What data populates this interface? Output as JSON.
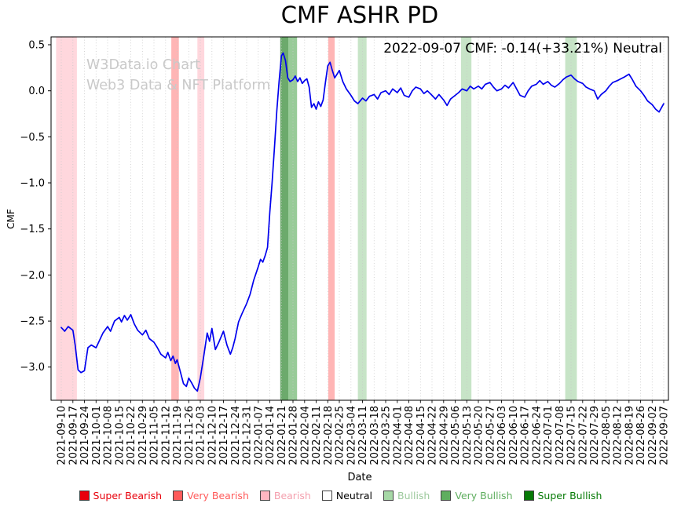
{
  "title": "CMF ASHR PD",
  "annotation": "2022-09-07 CMF: -0.14(+33.21%) Neutral",
  "watermark": {
    "line1": "W3Data.io Chart",
    "line2": "Web3 Data & NFT Platform"
  },
  "chart_data": {
    "type": "line",
    "title": "CMF ASHR PD",
    "xlabel": "Date",
    "ylabel": "CMF",
    "line_color": "#0000ee",
    "grid": "vertical-dotted",
    "legend_position": "bottom",
    "ylim": [
      -3.36,
      0.59
    ],
    "yticks": [
      {
        "value": 0.5,
        "label": "0.5"
      },
      {
        "value": 0.0,
        "label": "0.0"
      },
      {
        "value": -0.5,
        "label": "−0.5"
      },
      {
        "value": -1.0,
        "label": "−1.0"
      },
      {
        "value": -1.5,
        "label": "−1.5"
      },
      {
        "value": -2.0,
        "label": "−2.0"
      },
      {
        "value": -2.5,
        "label": "−2.5"
      },
      {
        "value": -3.0,
        "label": "−3.0"
      }
    ],
    "x_tick_labels": [
      "2021-09-10",
      "2021-09-17",
      "2021-09-24",
      "2021-10-01",
      "2021-10-08",
      "2021-10-15",
      "2021-10-22",
      "2021-10-29",
      "2021-11-05",
      "2021-11-12",
      "2021-11-19",
      "2021-11-26",
      "2021-12-03",
      "2021-12-10",
      "2021-12-17",
      "2021-12-24",
      "2021-12-31",
      "2022-01-07",
      "2022-01-14",
      "2022-01-21",
      "2022-01-28",
      "2022-02-04",
      "2022-02-11",
      "2022-02-18",
      "2022-02-25",
      "2022-03-04",
      "2022-03-11",
      "2022-03-18",
      "2022-03-25",
      "2022-04-01",
      "2022-04-08",
      "2022-04-15",
      "2022-04-22",
      "2022-04-29",
      "2022-05-06",
      "2022-05-13",
      "2022-05-20",
      "2022-05-27",
      "2022-06-03",
      "2022-06-10",
      "2022-06-17",
      "2022-06-24",
      "2022-07-01",
      "2022-07-08",
      "2022-07-15",
      "2022-07-22",
      "2022-07-29",
      "2022-08-05",
      "2022-08-12",
      "2022-08-19",
      "2022-08-26",
      "2022-09-02",
      "2022-09-07"
    ],
    "series": [
      {
        "name": "CMF",
        "points": [
          [
            0,
            -2.57
          ],
          [
            0.3,
            -2.61
          ],
          [
            0.6,
            -2.56
          ],
          [
            1,
            -2.6
          ],
          [
            1.2,
            -2.76
          ],
          [
            1.45,
            -3.03
          ],
          [
            1.7,
            -3.06
          ],
          [
            2,
            -3.04
          ],
          [
            2.3,
            -2.79
          ],
          [
            2.6,
            -2.76
          ],
          [
            3,
            -2.79
          ],
          [
            3.3,
            -2.71
          ],
          [
            3.6,
            -2.63
          ],
          [
            4,
            -2.56
          ],
          [
            4.25,
            -2.61
          ],
          [
            4.6,
            -2.5
          ],
          [
            5,
            -2.46
          ],
          [
            5.2,
            -2.51
          ],
          [
            5.45,
            -2.44
          ],
          [
            5.7,
            -2.49
          ],
          [
            6,
            -2.43
          ],
          [
            6.3,
            -2.53
          ],
          [
            6.6,
            -2.6
          ],
          [
            7,
            -2.65
          ],
          [
            7.3,
            -2.6
          ],
          [
            7.6,
            -2.69
          ],
          [
            8,
            -2.73
          ],
          [
            8.3,
            -2.79
          ],
          [
            8.6,
            -2.86
          ],
          [
            9,
            -2.9
          ],
          [
            9.2,
            -2.84
          ],
          [
            9.45,
            -2.93
          ],
          [
            9.65,
            -2.88
          ],
          [
            9.85,
            -2.96
          ],
          [
            10,
            -2.92
          ],
          [
            10.3,
            -3.06
          ],
          [
            10.55,
            -3.18
          ],
          [
            10.8,
            -3.21
          ],
          [
            11,
            -3.12
          ],
          [
            11.25,
            -3.17
          ],
          [
            11.5,
            -3.23
          ],
          [
            11.75,
            -3.26
          ],
          [
            12,
            -3.12
          ],
          [
            12.3,
            -2.88
          ],
          [
            12.6,
            -2.63
          ],
          [
            12.8,
            -2.72
          ],
          [
            13,
            -2.58
          ],
          [
            13.3,
            -2.81
          ],
          [
            13.6,
            -2.73
          ],
          [
            14,
            -2.61
          ],
          [
            14.3,
            -2.76
          ],
          [
            14.6,
            -2.86
          ],
          [
            14.8,
            -2.79
          ],
          [
            15,
            -2.69
          ],
          [
            15.3,
            -2.51
          ],
          [
            15.6,
            -2.42
          ],
          [
            16,
            -2.31
          ],
          [
            16.3,
            -2.21
          ],
          [
            16.6,
            -2.06
          ],
          [
            17,
            -1.91
          ],
          [
            17.2,
            -1.83
          ],
          [
            17.4,
            -1.86
          ],
          [
            17.6,
            -1.79
          ],
          [
            17.8,
            -1.7
          ],
          [
            18,
            -1.32
          ],
          [
            18.2,
            -1.0
          ],
          [
            18.4,
            -0.62
          ],
          [
            18.6,
            -0.22
          ],
          [
            18.8,
            0.1
          ],
          [
            19,
            0.38
          ],
          [
            19.15,
            0.41
          ],
          [
            19.35,
            0.33
          ],
          [
            19.55,
            0.14
          ],
          [
            19.75,
            0.1
          ],
          [
            20,
            0.12
          ],
          [
            20.2,
            0.16
          ],
          [
            20.4,
            0.1
          ],
          [
            20.6,
            0.14
          ],
          [
            20.8,
            0.08
          ],
          [
            21,
            0.11
          ],
          [
            21.2,
            0.13
          ],
          [
            21.4,
            0.04
          ],
          [
            21.6,
            -0.18
          ],
          [
            21.8,
            -0.14
          ],
          [
            22,
            -0.2
          ],
          [
            22.2,
            -0.12
          ],
          [
            22.4,
            -0.17
          ],
          [
            22.6,
            -0.1
          ],
          [
            22.8,
            0.09
          ],
          [
            23,
            0.27
          ],
          [
            23.2,
            0.31
          ],
          [
            23.4,
            0.22
          ],
          [
            23.6,
            0.14
          ],
          [
            23.8,
            0.18
          ],
          [
            24,
            0.22
          ],
          [
            24.3,
            0.1
          ],
          [
            24.6,
            0.02
          ],
          [
            25,
            -0.05
          ],
          [
            25.3,
            -0.11
          ],
          [
            25.6,
            -0.14
          ],
          [
            26,
            -0.08
          ],
          [
            26.3,
            -0.11
          ],
          [
            26.6,
            -0.06
          ],
          [
            27,
            -0.04
          ],
          [
            27.3,
            -0.09
          ],
          [
            27.6,
            -0.02
          ],
          [
            28,
            0.0
          ],
          [
            28.3,
            -0.04
          ],
          [
            28.6,
            0.02
          ],
          [
            29,
            -0.02
          ],
          [
            29.3,
            0.03
          ],
          [
            29.6,
            -0.05
          ],
          [
            30,
            -0.07
          ],
          [
            30.3,
            0.0
          ],
          [
            30.6,
            0.04
          ],
          [
            31,
            0.02
          ],
          [
            31.3,
            -0.03
          ],
          [
            31.6,
            0.0
          ],
          [
            32,
            -0.05
          ],
          [
            32.3,
            -0.09
          ],
          [
            32.6,
            -0.04
          ],
          [
            33,
            -0.1
          ],
          [
            33.3,
            -0.16
          ],
          [
            33.6,
            -0.09
          ],
          [
            34,
            -0.05
          ],
          [
            34.3,
            -0.02
          ],
          [
            34.6,
            0.02
          ],
          [
            35,
            0.0
          ],
          [
            35.3,
            0.05
          ],
          [
            35.6,
            0.02
          ],
          [
            36,
            0.05
          ],
          [
            36.3,
            0.02
          ],
          [
            36.6,
            0.07
          ],
          [
            37,
            0.09
          ],
          [
            37.3,
            0.04
          ],
          [
            37.6,
            0.0
          ],
          [
            38,
            0.02
          ],
          [
            38.3,
            0.06
          ],
          [
            38.6,
            0.03
          ],
          [
            39,
            0.09
          ],
          [
            39.3,
            0.02
          ],
          [
            39.6,
            -0.05
          ],
          [
            40,
            -0.07
          ],
          [
            40.3,
            0.0
          ],
          [
            40.6,
            0.05
          ],
          [
            41,
            0.07
          ],
          [
            41.3,
            0.11
          ],
          [
            41.6,
            0.07
          ],
          [
            42,
            0.1
          ],
          [
            42.3,
            0.06
          ],
          [
            42.6,
            0.04
          ],
          [
            43,
            0.08
          ],
          [
            43.3,
            0.12
          ],
          [
            43.6,
            0.15
          ],
          [
            44,
            0.17
          ],
          [
            44.3,
            0.13
          ],
          [
            44.6,
            0.1
          ],
          [
            45,
            0.08
          ],
          [
            45.3,
            0.04
          ],
          [
            45.6,
            0.02
          ],
          [
            46,
            0.0
          ],
          [
            46.3,
            -0.09
          ],
          [
            46.6,
            -0.04
          ],
          [
            47,
            0.0
          ],
          [
            47.3,
            0.05
          ],
          [
            47.6,
            0.09
          ],
          [
            48,
            0.11
          ],
          [
            48.3,
            0.13
          ],
          [
            48.6,
            0.15
          ],
          [
            49,
            0.18
          ],
          [
            49.3,
            0.12
          ],
          [
            49.6,
            0.05
          ],
          [
            50,
            0.0
          ],
          [
            50.3,
            -0.05
          ],
          [
            50.6,
            -0.11
          ],
          [
            51,
            -0.15
          ],
          [
            51.3,
            -0.2
          ],
          [
            51.6,
            -0.23
          ],
          [
            52,
            -0.14
          ]
        ]
      }
    ],
    "band_colors": {
      "bearish": {
        "fill": "#ffb6c1",
        "opacity": 0.55
      },
      "very_bearish": {
        "fill": "#ff5a5a",
        "opacity": 0.45
      },
      "bullish": {
        "fill": "#8fc98f",
        "opacity": 0.5
      },
      "bullish_strong": {
        "fill": "#44a044",
        "opacity": 0.55
      },
      "very_bullish": {
        "fill": "#1d7c1d",
        "opacity": 0.65
      }
    },
    "bands": [
      {
        "from": -0.45,
        "to": 1.35,
        "level": "bearish"
      },
      {
        "from": 9.5,
        "to": 10.15,
        "level": "very_bearish"
      },
      {
        "from": 11.75,
        "to": 12.35,
        "level": "bearish"
      },
      {
        "from": 18.9,
        "to": 19.6,
        "level": "very_bullish"
      },
      {
        "from": 19.6,
        "to": 20.35,
        "level": "bullish_strong"
      },
      {
        "from": 23.05,
        "to": 23.6,
        "level": "very_bearish"
      },
      {
        "from": 25.6,
        "to": 26.35,
        "level": "bullish"
      },
      {
        "from": 34.5,
        "to": 35.4,
        "level": "bullish"
      },
      {
        "from": 43.5,
        "to": 44.5,
        "level": "bullish"
      }
    ]
  },
  "legend": {
    "items": [
      {
        "label": "Super Bearish",
        "color": "#e8000b",
        "text_color": "#e8000b"
      },
      {
        "label": "Very Bearish",
        "color": "#ff5a5a",
        "text_color": "#ff5a5a"
      },
      {
        "label": "Bearish",
        "color": "#ffb6c1",
        "text_color": "#f4a0ae"
      },
      {
        "label": "Neutral",
        "color": "#ffffff",
        "text_color": "#000000"
      },
      {
        "label": "Bullish",
        "color": "#a6d8a6",
        "text_color": "#9cc99c"
      },
      {
        "label": "Very Bullish",
        "color": "#5fae5f",
        "text_color": "#5fae5f"
      },
      {
        "label": "Super Bullish",
        "color": "#067a06",
        "text_color": "#067a06"
      }
    ]
  }
}
